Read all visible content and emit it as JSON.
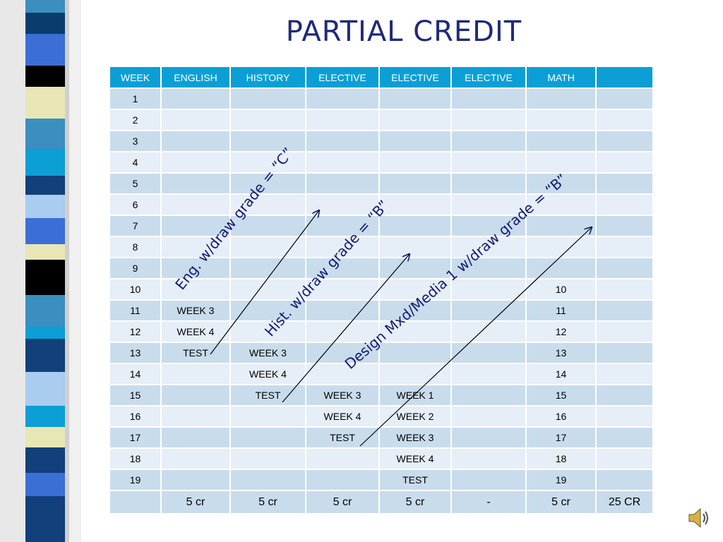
{
  "slide": {
    "title": "PARTIAL CREDIT"
  },
  "table": {
    "headers": [
      "WEEK",
      "ENGLISH",
      "HISTORY",
      "ELECTIVE",
      "ELECTIVE",
      "ELECTIVE",
      "MATH",
      ""
    ],
    "rows": [
      [
        "1",
        "",
        "",
        "",
        "",
        "",
        "",
        ""
      ],
      [
        "2",
        "",
        "",
        "",
        "",
        "",
        "",
        ""
      ],
      [
        "3",
        "",
        "",
        "",
        "",
        "",
        "",
        ""
      ],
      [
        "4",
        "",
        "",
        "",
        "",
        "",
        "",
        ""
      ],
      [
        "5",
        "",
        "",
        "",
        "",
        "",
        "",
        ""
      ],
      [
        "6",
        "",
        "",
        "",
        "",
        "",
        "",
        ""
      ],
      [
        "7",
        "",
        "",
        "",
        "",
        "",
        "",
        ""
      ],
      [
        "8",
        "",
        "",
        "",
        "",
        "",
        "",
        ""
      ],
      [
        "9",
        "",
        "",
        "",
        "",
        "",
        "",
        ""
      ],
      [
        "10",
        "",
        "",
        "",
        "",
        "",
        "10",
        ""
      ],
      [
        "11",
        "WEEK 3",
        "",
        "",
        "",
        "",
        "11",
        ""
      ],
      [
        "12",
        "WEEK 4",
        "",
        "",
        "",
        "",
        "12",
        ""
      ],
      [
        "13",
        "TEST",
        "WEEK 3",
        "",
        "",
        "",
        "13",
        ""
      ],
      [
        "14",
        "",
        "WEEK 4",
        "",
        "",
        "",
        "14",
        ""
      ],
      [
        "15",
        "",
        "TEST",
        "WEEK 3",
        "WEEK 1",
        "",
        "15",
        ""
      ],
      [
        "16",
        "",
        "",
        "WEEK 4",
        "WEEK 2",
        "",
        "16",
        ""
      ],
      [
        "17",
        "",
        "",
        "TEST",
        "WEEK 3",
        "",
        "17",
        ""
      ],
      [
        "18",
        "",
        "",
        "",
        "WEEK 4",
        "",
        "18",
        ""
      ],
      [
        "19",
        "",
        "",
        "",
        "TEST",
        "",
        "19",
        ""
      ],
      [
        "",
        "5 cr",
        "5 cr",
        "5 cr",
        "5 cr",
        "-",
        "5 cr",
        "25 CR"
      ]
    ]
  },
  "annotations": {
    "english": "Eng. w/draw grade = “C”",
    "history": "Hist. w/draw grade = “B”",
    "design": "Design Mxd/Media 1 w/draw grade = “B”"
  },
  "colors": {
    "title": "#1f2a7a",
    "header_bg": "#0b9fd6",
    "row_odd": "#c9dcec",
    "row_even": "#e6eef7",
    "annotation": "#141b72"
  },
  "icons": {
    "speaker": "speaker-icon"
  }
}
